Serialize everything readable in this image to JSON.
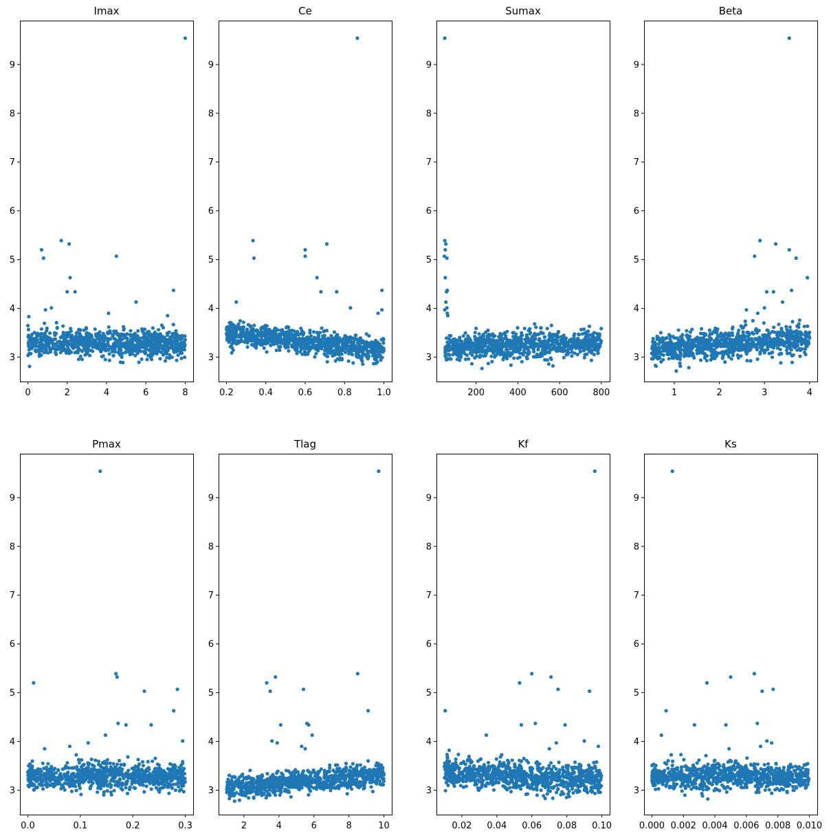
{
  "figure": {
    "point_color": "#1f77b4",
    "axis_color": "#000000",
    "background": "#ffffff"
  },
  "chart_data": [
    {
      "type": "scatter",
      "title": "Imax",
      "xlim": [
        -0.4,
        8.4
      ],
      "ylim": [
        2.5,
        9.9
      ],
      "xticks": [
        0,
        2,
        4,
        6,
        8
      ],
      "xtick_labels": [
        "0",
        "2",
        "4",
        "6",
        "8"
      ],
      "yticks": [
        3,
        4,
        5,
        6,
        7,
        8,
        9
      ],
      "ytick_labels": [
        "3",
        "4",
        "5",
        "6",
        "7",
        "8",
        "9"
      ],
      "n_points": 900,
      "band": {
        "x": [
          0,
          8
        ],
        "y_center": [
          3.28,
          3.28
        ],
        "spread": 0.18
      },
      "outliers": [
        [
          8.0,
          9.54
        ],
        [
          0.7,
          5.2
        ],
        [
          0.8,
          5.03
        ],
        [
          1.7,
          5.39
        ],
        [
          2.1,
          5.32
        ],
        [
          2.15,
          4.63
        ],
        [
          2.0,
          4.34
        ],
        [
          2.4,
          4.34
        ],
        [
          4.5,
          5.07
        ],
        [
          5.5,
          4.13
        ],
        [
          7.4,
          4.37
        ],
        [
          1.2,
          4.01
        ],
        [
          0.9,
          3.97
        ],
        [
          4.1,
          3.9
        ],
        [
          7.1,
          3.85
        ],
        [
          0.05,
          3.83
        ]
      ]
    },
    {
      "type": "scatter",
      "title": "Ce",
      "xlim": [
        0.16,
        1.04
      ],
      "ylim": [
        2.5,
        9.9
      ],
      "xticks": [
        0.2,
        0.4,
        0.6,
        0.8,
        1.0
      ],
      "xtick_labels": [
        "0.2",
        "0.4",
        "0.6",
        "0.8",
        "1.0"
      ],
      "yticks": [
        3,
        4,
        5,
        6,
        7,
        8,
        9
      ],
      "ytick_labels": [
        "3",
        "4",
        "5",
        "6",
        "7",
        "8",
        "9"
      ],
      "n_points": 900,
      "band": {
        "x": [
          0.2,
          1.0
        ],
        "y_center": [
          3.5,
          3.12
        ],
        "spread": 0.16
      },
      "outliers": [
        [
          0.865,
          9.54
        ],
        [
          0.335,
          5.39
        ],
        [
          0.34,
          5.03
        ],
        [
          0.6,
          5.2
        ],
        [
          0.6,
          5.07
        ],
        [
          0.71,
          5.32
        ],
        [
          0.66,
          4.63
        ],
        [
          0.68,
          4.34
        ],
        [
          0.76,
          4.34
        ],
        [
          0.99,
          4.37
        ],
        [
          0.99,
          3.97
        ],
        [
          0.97,
          3.9
        ],
        [
          0.83,
          4.01
        ],
        [
          0.25,
          4.13
        ]
      ]
    },
    {
      "type": "scatter",
      "title": "Sumax",
      "xlim": [
        10,
        840
      ],
      "ylim": [
        2.5,
        9.9
      ],
      "xticks": [
        200,
        400,
        600,
        800
      ],
      "xtick_labels": [
        "200",
        "400",
        "600",
        "800"
      ],
      "yticks": [
        3,
        4,
        5,
        6,
        7,
        8,
        9
      ],
      "ytick_labels": [
        "3",
        "4",
        "5",
        "6",
        "7",
        "8",
        "9"
      ],
      "n_points": 900,
      "band": {
        "x": [
          50,
          800
        ],
        "y_center": [
          3.2,
          3.3
        ],
        "spread": 0.18
      },
      "outliers": [
        [
          50,
          9.54
        ],
        [
          50,
          5.39
        ],
        [
          55,
          5.32
        ],
        [
          52,
          5.2
        ],
        [
          48,
          5.07
        ],
        [
          60,
          5.03
        ],
        [
          52,
          4.63
        ],
        [
          62,
          4.37
        ],
        [
          58,
          4.34
        ],
        [
          55,
          4.13
        ],
        [
          60,
          4.01
        ],
        [
          50,
          3.97
        ],
        [
          62,
          3.9
        ],
        [
          64,
          3.85
        ]
      ]
    },
    {
      "type": "scatter",
      "title": "Beta",
      "xlim": [
        0.33,
        4.17
      ],
      "ylim": [
        2.5,
        9.9
      ],
      "xticks": [
        1,
        2,
        3,
        4
      ],
      "xtick_labels": [
        "1",
        "2",
        "3",
        "4"
      ],
      "yticks": [
        3,
        4,
        5,
        6,
        7,
        8,
        9
      ],
      "ytick_labels": [
        "3",
        "4",
        "5",
        "6",
        "7",
        "8",
        "9"
      ],
      "n_points": 900,
      "band": {
        "x": [
          0.5,
          4.0
        ],
        "y_center": [
          3.15,
          3.38
        ],
        "spread": 0.2
      },
      "outliers": [
        [
          3.55,
          9.54
        ],
        [
          2.9,
          5.39
        ],
        [
          3.25,
          5.32
        ],
        [
          3.55,
          5.2
        ],
        [
          2.78,
          5.07
        ],
        [
          3.7,
          5.03
        ],
        [
          3.95,
          4.63
        ],
        [
          3.6,
          4.37
        ],
        [
          3.05,
          4.34
        ],
        [
          3.2,
          4.34
        ],
        [
          3.4,
          4.13
        ],
        [
          3.0,
          4.01
        ],
        [
          2.6,
          3.97
        ],
        [
          2.85,
          3.9
        ]
      ]
    },
    {
      "type": "scatter",
      "title": "Pmax",
      "xlim": [
        -0.015,
        0.315
      ],
      "ylim": [
        2.5,
        9.9
      ],
      "xticks": [
        0.0,
        0.1,
        0.2,
        0.3
      ],
      "xtick_labels": [
        "0.0",
        "0.1",
        "0.2",
        "0.3"
      ],
      "yticks": [
        3,
        4,
        5,
        6,
        7,
        8,
        9
      ],
      "ytick_labels": [
        "3",
        "4",
        "5",
        "6",
        "7",
        "8",
        "9"
      ],
      "n_points": 900,
      "band": {
        "x": [
          0,
          0.3
        ],
        "y_center": [
          3.28,
          3.28
        ],
        "spread": 0.18
      },
      "outliers": [
        [
          0.138,
          9.54
        ],
        [
          0.011,
          5.2
        ],
        [
          0.168,
          5.39
        ],
        [
          0.17,
          5.32
        ],
        [
          0.222,
          5.03
        ],
        [
          0.285,
          5.07
        ],
        [
          0.278,
          4.63
        ],
        [
          0.172,
          4.37
        ],
        [
          0.187,
          4.34
        ],
        [
          0.235,
          4.34
        ],
        [
          0.148,
          4.13
        ],
        [
          0.295,
          4.01
        ],
        [
          0.115,
          3.97
        ],
        [
          0.08,
          3.9
        ],
        [
          0.032,
          3.85
        ]
      ]
    },
    {
      "type": "scatter",
      "title": "Tlag",
      "xlim": [
        0.55,
        10.45
      ],
      "ylim": [
        2.5,
        9.9
      ],
      "xticks": [
        2,
        4,
        6,
        8,
        10
      ],
      "xtick_labels": [
        "2",
        "4",
        "6",
        "8",
        "10"
      ],
      "yticks": [
        3,
        4,
        5,
        6,
        7,
        8,
        9
      ],
      "ytick_labels": [
        "3",
        "4",
        "5",
        "6",
        "7",
        "8",
        "9"
      ],
      "n_points": 900,
      "band": {
        "x": [
          1,
          10
        ],
        "y_center": [
          3.05,
          3.32
        ],
        "spread": 0.15
      },
      "outliers": [
        [
          9.7,
          9.54
        ],
        [
          3.3,
          5.2
        ],
        [
          3.5,
          5.03
        ],
        [
          3.8,
          5.32
        ],
        [
          5.4,
          5.07
        ],
        [
          8.5,
          5.39
        ],
        [
          9.1,
          4.63
        ],
        [
          4.1,
          4.34
        ],
        [
          5.6,
          4.37
        ],
        [
          5.7,
          4.34
        ],
        [
          5.9,
          4.13
        ],
        [
          3.6,
          4.01
        ],
        [
          3.9,
          3.97
        ],
        [
          5.3,
          3.9
        ],
        [
          5.5,
          3.85
        ]
      ]
    },
    {
      "type": "scatter",
      "title": "Kf",
      "xlim": [
        0.0055,
        0.1045
      ],
      "ylim": [
        2.5,
        9.9
      ],
      "xticks": [
        0.02,
        0.04,
        0.06,
        0.08,
        0.1
      ],
      "xtick_labels": [
        "0.02",
        "0.04",
        "0.06",
        "0.08",
        "0.10"
      ],
      "yticks": [
        3,
        4,
        5,
        6,
        7,
        8,
        9
      ],
      "ytick_labels": [
        "3",
        "4",
        "5",
        "6",
        "7",
        "8",
        "9"
      ],
      "n_points": 900,
      "band": {
        "x": [
          0.01,
          0.1
        ],
        "y_center": [
          3.38,
          3.18
        ],
        "spread": 0.2
      },
      "outliers": [
        [
          0.096,
          9.54
        ],
        [
          0.0105,
          4.63
        ],
        [
          0.053,
          5.2
        ],
        [
          0.06,
          5.39
        ],
        [
          0.071,
          5.32
        ],
        [
          0.075,
          5.07
        ],
        [
          0.093,
          5.03
        ],
        [
          0.054,
          4.34
        ],
        [
          0.062,
          4.37
        ],
        [
          0.079,
          4.34
        ],
        [
          0.034,
          4.13
        ],
        [
          0.09,
          4.01
        ],
        [
          0.074,
          3.97
        ],
        [
          0.098,
          3.9
        ],
        [
          0.07,
          3.85
        ]
      ]
    },
    {
      "type": "scatter",
      "title": "Ks",
      "xlim": [
        -0.0005,
        0.0105
      ],
      "ylim": [
        2.5,
        9.9
      ],
      "xticks": [
        0.0,
        0.002,
        0.004,
        0.006,
        0.008,
        0.01
      ],
      "xtick_labels": [
        "0.000",
        "0.002",
        "0.004",
        "0.006",
        "0.008",
        "0.010"
      ],
      "yticks": [
        3,
        4,
        5,
        6,
        7,
        8,
        9
      ],
      "ytick_labels": [
        "3",
        "4",
        "5",
        "6",
        "7",
        "8",
        "9"
      ],
      "n_points": 900,
      "band": {
        "x": [
          0,
          0.01
        ],
        "y_center": [
          3.28,
          3.28
        ],
        "spread": 0.18
      },
      "outliers": [
        [
          0.0013,
          9.54
        ],
        [
          0.0009,
          4.63
        ],
        [
          0.0035,
          5.2
        ],
        [
          0.005,
          5.32
        ],
        [
          0.0065,
          5.39
        ],
        [
          0.007,
          5.03
        ],
        [
          0.0077,
          5.07
        ],
        [
          0.0027,
          4.34
        ],
        [
          0.0047,
          4.34
        ],
        [
          0.0067,
          4.37
        ],
        [
          0.0006,
          4.13
        ],
        [
          0.0073,
          4.01
        ],
        [
          0.0069,
          3.9
        ],
        [
          0.0049,
          3.85
        ],
        [
          0.0076,
          3.97
        ]
      ]
    }
  ]
}
